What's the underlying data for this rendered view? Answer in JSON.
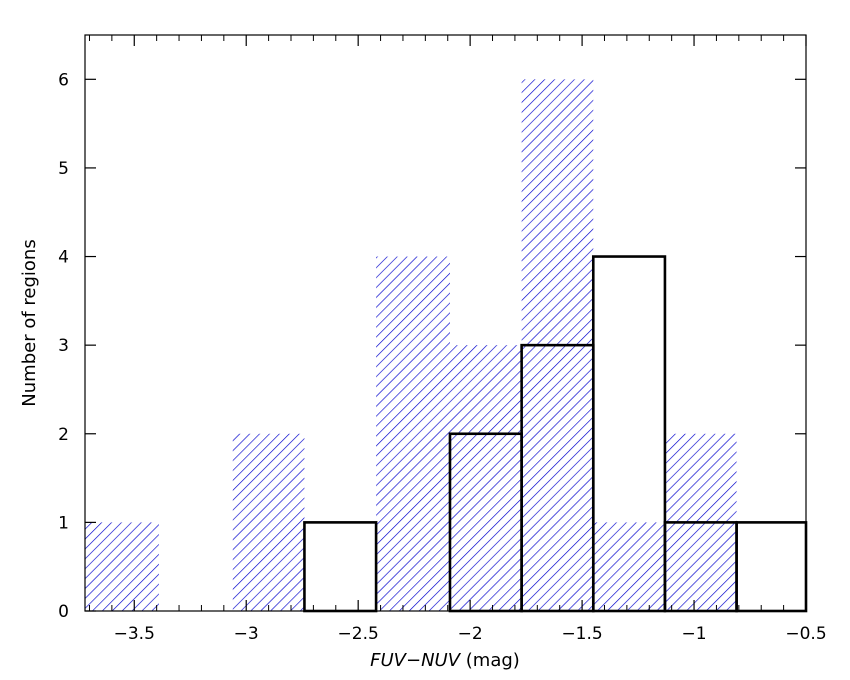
{
  "chart_data": {
    "type": "bar",
    "bin_edges": [
      -3.72,
      -3.39,
      -3.06,
      -2.74,
      -2.42,
      -2.09,
      -1.77,
      -1.45,
      -1.13,
      -0.81,
      -0.5
    ],
    "series": [
      {
        "style": "blue-hatched",
        "color": "#0000cc",
        "values": [
          1,
          0,
          2,
          0,
          4,
          3,
          6,
          1,
          2,
          0
        ]
      },
      {
        "style": "black-outline",
        "color": "#000000",
        "values": [
          0,
          0,
          0,
          1,
          0,
          2,
          3,
          4,
          1,
          1
        ]
      }
    ],
    "xlim": [
      -3.72,
      -0.5
    ],
    "ylim": [
      0,
      6.5
    ],
    "xticks": [
      -3.5,
      -3,
      -2.5,
      -2,
      -1.5,
      -1,
      -0.5
    ],
    "xtick_labels": [
      "−3.5",
      "−3",
      "−2.5",
      "−2",
      "−1.5",
      "−1",
      "−0.5"
    ],
    "yticks": [
      0,
      1,
      2,
      3,
      4,
      5,
      6
    ],
    "ytick_labels": [
      "0",
      "1",
      "2",
      "3",
      "4",
      "5",
      "6"
    ],
    "xlabel_italic": "FUV−NUV",
    "xlabel_unit": "(mag)",
    "ylabel": "Number of regions",
    "grid": false
  }
}
